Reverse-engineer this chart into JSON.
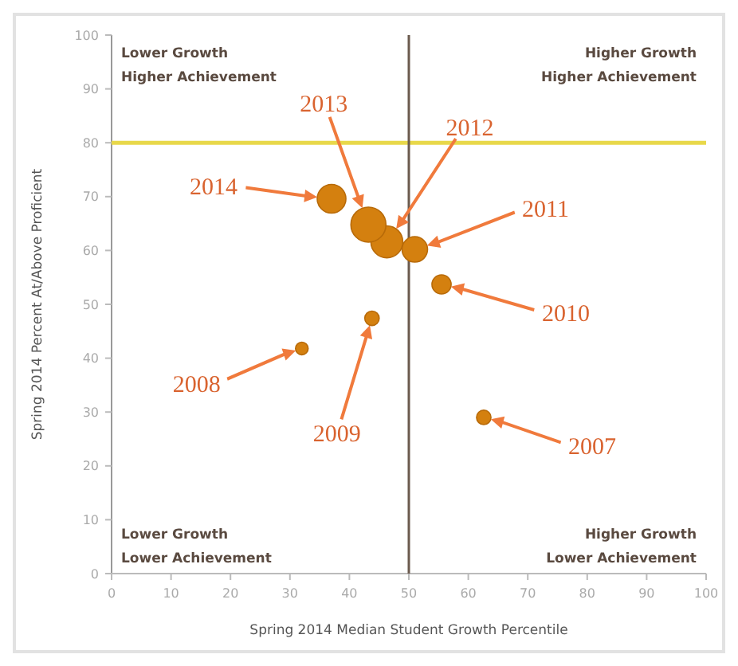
{
  "chart_data": {
    "type": "bubble",
    "xlabel": "Spring 2014 Median Student Growth Percentile",
    "ylabel": "Spring 2014 Percent At/Above Proficient",
    "x": [
      62.6,
      32,
      43.8,
      55.5,
      51,
      46.3,
      43.2,
      37
    ],
    "series": [
      {
        "color": "#d4800f",
        "values": [
          29,
          41.8,
          47.4,
          53.7,
          60.2,
          61.6,
          64.8,
          69.6
        ],
        "sizes": [
          0.17,
          0.13,
          0.17,
          0.3,
          0.53,
          0.83,
          1,
          0.67
        ]
      }
    ],
    "xlim": [
      0,
      100
    ],
    "xticks": [
      0,
      10,
      20,
      30,
      40,
      50,
      60,
      70,
      80,
      90,
      100
    ],
    "ylim": [
      0,
      100
    ],
    "yticks": [
      0,
      10,
      20,
      30,
      40,
      50,
      60,
      70,
      80,
      90,
      100
    ],
    "grid": false,
    "ref_lines": [
      {
        "axis": "y",
        "value": 80,
        "color": "#e8d84a"
      },
      {
        "axis": "x",
        "value": 50,
        "color": "#6b5a4e"
      }
    ],
    "annotations": [
      "Lower Growth\nHigher Achievement",
      "Higher Growth\nHigher Achievement",
      "Lower Growth\nLower Achievement",
      "Higher Growth\nLower Achievement",
      "2007",
      "2008",
      "2009",
      "2010",
      "2011",
      "2012",
      "2013",
      "2014"
    ]
  }
}
